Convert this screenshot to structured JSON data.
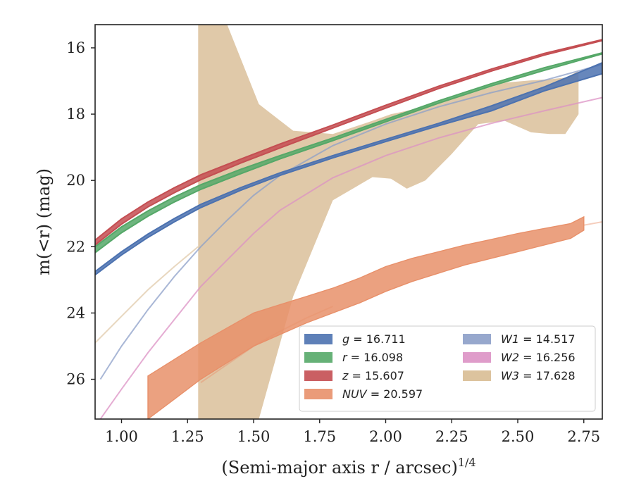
{
  "chart_data": {
    "type": "line",
    "title": "",
    "xlabel": "(Semi-major axis r / arcsec)",
    "xlabel_power": "1/4",
    "ylabel": "m(<r) (mag)",
    "xlim": [
      0.9,
      2.82
    ],
    "ylim": [
      27.2,
      15.3
    ],
    "y_inverted": true,
    "x_ticks": [
      1.0,
      1.25,
      1.5,
      1.75,
      2.0,
      2.25,
      2.5,
      2.75
    ],
    "x_tick_labels": [
      "1.00",
      "1.25",
      "1.50",
      "1.75",
      "2.00",
      "2.25",
      "2.50",
      "2.75"
    ],
    "y_ticks": [
      16,
      18,
      20,
      22,
      24,
      26
    ],
    "y_tick_labels": [
      "16",
      "18",
      "20",
      "22",
      "24",
      "26"
    ],
    "legend_position": "lower-right",
    "legend_columns": 2,
    "series": [
      {
        "name": "g = 16.711",
        "legend_var": "g",
        "legend_val": "16.711",
        "color": "#4c72b0",
        "kind": "band",
        "x": [
          0.9,
          1.0,
          1.1,
          1.2,
          1.3,
          1.45,
          1.6,
          1.8,
          2.0,
          2.2,
          2.4,
          2.6,
          2.82
        ],
        "y_upper": [
          22.75,
          22.15,
          21.62,
          21.15,
          20.72,
          20.22,
          19.77,
          19.25,
          18.76,
          18.28,
          17.75,
          17.18,
          16.45
        ],
        "y_lower": [
          22.85,
          22.25,
          21.72,
          21.25,
          20.82,
          20.3,
          19.85,
          19.32,
          18.83,
          18.35,
          17.9,
          17.3,
          16.78
        ]
      },
      {
        "name": "r = 16.098",
        "legend_var": "r",
        "legend_val": "16.098",
        "color": "#55a868",
        "kind": "band",
        "x": [
          0.9,
          1.0,
          1.1,
          1.2,
          1.3,
          1.45,
          1.6,
          1.8,
          2.0,
          2.2,
          2.4,
          2.6,
          2.82
        ],
        "y_upper": [
          22.0,
          21.4,
          20.92,
          20.5,
          20.13,
          19.67,
          19.25,
          18.72,
          18.16,
          17.6,
          17.08,
          16.6,
          16.15
        ],
        "y_lower": [
          22.18,
          21.58,
          21.08,
          20.65,
          20.27,
          19.8,
          19.35,
          18.8,
          18.23,
          17.67,
          17.15,
          16.68,
          16.18
        ]
      },
      {
        "name": "z = 15.607",
        "legend_var": "z",
        "legend_val": "15.607",
        "color": "#c44e52",
        "kind": "band",
        "x": [
          0.9,
          1.0,
          1.1,
          1.2,
          1.3,
          1.45,
          1.6,
          1.8,
          2.0,
          2.2,
          2.4,
          2.6,
          2.82
        ],
        "y_upper": [
          21.8,
          21.16,
          20.65,
          20.22,
          19.83,
          19.36,
          18.9,
          18.33,
          17.73,
          17.16,
          16.64,
          16.17,
          15.75
        ],
        "y_lower": [
          21.95,
          21.32,
          20.8,
          20.37,
          19.98,
          19.48,
          19.02,
          18.42,
          17.82,
          17.23,
          16.7,
          16.22,
          15.78
        ]
      },
      {
        "name": "W1 = 14.517",
        "legend_var": "W1",
        "legend_val": "14.517",
        "color": "#8c9fc8",
        "kind": "line",
        "x": [
          0.92,
          1.0,
          1.1,
          1.2,
          1.3,
          1.4,
          1.5,
          1.6,
          1.8,
          2.0,
          2.2,
          2.4,
          2.6,
          2.82
        ],
        "y": [
          26.0,
          25.0,
          23.9,
          22.9,
          22.0,
          21.2,
          20.45,
          19.85,
          18.95,
          18.3,
          17.78,
          17.35,
          16.98,
          16.5
        ]
      },
      {
        "name": "W2 = 16.256",
        "legend_var": "W2",
        "legend_val": "16.256",
        "color": "#dc91c4",
        "kind": "line",
        "x": [
          0.92,
          1.0,
          1.1,
          1.2,
          1.3,
          1.4,
          1.5,
          1.6,
          1.8,
          2.0,
          2.2,
          2.4,
          2.6,
          2.82
        ],
        "y": [
          27.2,
          26.3,
          25.2,
          24.2,
          23.2,
          22.4,
          21.6,
          20.9,
          19.92,
          19.25,
          18.72,
          18.28,
          17.9,
          17.5
        ]
      },
      {
        "name": "W3 = 17.628",
        "legend_var": "W3",
        "legend_val": "17.628",
        "color": "#d8bc94",
        "kind": "band",
        "x": [
          1.29,
          1.4,
          1.52,
          1.65,
          1.8,
          1.95,
          2.02,
          2.08,
          2.15,
          2.25,
          2.35,
          2.45,
          2.55,
          2.62,
          2.68,
          2.73
        ],
        "y_upper": [
          15.3,
          15.3,
          17.7,
          18.5,
          18.6,
          18.2,
          18.0,
          17.9,
          17.75,
          17.55,
          17.3,
          17.05,
          16.98,
          16.95,
          16.9,
          16.7
        ],
        "y_lower": [
          27.2,
          27.2,
          27.2,
          23.5,
          20.6,
          19.9,
          19.95,
          20.25,
          20.0,
          19.2,
          18.3,
          18.2,
          18.55,
          18.6,
          18.6,
          18.0
        ],
        "faint_extension": {
          "x": [
            0.9,
            1.0,
            1.1,
            1.2,
            1.29
          ],
          "y": [
            24.9,
            24.1,
            23.3,
            22.6,
            22.0
          ]
        }
      },
      {
        "name": "NUV = 20.597",
        "legend_var": "NUV",
        "legend_val": "20.597",
        "color": "#e8906a",
        "kind": "band",
        "x": [
          1.1,
          1.2,
          1.3,
          1.4,
          1.5,
          1.6,
          1.7,
          1.8,
          1.9,
          2.0,
          2.1,
          2.2,
          2.3,
          2.4,
          2.5,
          2.6,
          2.7,
          2.75
        ],
        "y_upper": [
          25.9,
          25.4,
          24.9,
          24.45,
          24.0,
          23.75,
          23.5,
          23.25,
          22.95,
          22.6,
          22.35,
          22.15,
          21.95,
          21.78,
          21.6,
          21.45,
          21.3,
          21.1
        ],
        "y_lower": [
          27.2,
          26.6,
          26.0,
          25.5,
          25.0,
          24.65,
          24.3,
          24.0,
          23.7,
          23.35,
          23.05,
          22.8,
          22.55,
          22.35,
          22.15,
          21.95,
          21.75,
          21.5
        ],
        "faint_extension_low": {
          "x": [
            1.3,
            1.4,
            1.5,
            1.6,
            1.7,
            1.8
          ],
          "y": [
            26.1,
            25.55,
            25.0,
            24.55,
            24.15,
            23.8
          ]
        },
        "faint_extension_high": {
          "x": [
            2.75,
            2.82
          ],
          "y": [
            21.35,
            21.25
          ]
        }
      }
    ]
  }
}
